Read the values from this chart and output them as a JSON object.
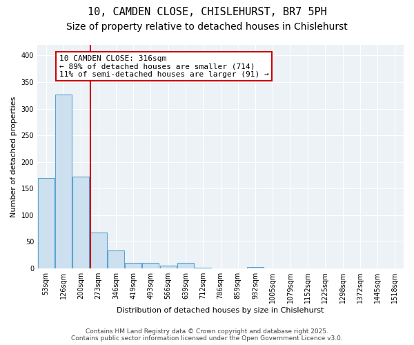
{
  "title_line1": "10, CAMDEN CLOSE, CHISLEHURST, BR7 5PH",
  "title_line2": "Size of property relative to detached houses in Chislehurst",
  "xlabel": "Distribution of detached houses by size in Chislehurst",
  "ylabel": "Number of detached properties",
  "bar_color": "#cce0f0",
  "bar_edge_color": "#5ba3d0",
  "bins": [
    "53sqm",
    "126sqm",
    "200sqm",
    "273sqm",
    "346sqm",
    "419sqm",
    "493sqm",
    "566sqm",
    "639sqm",
    "712sqm",
    "786sqm",
    "859sqm",
    "932sqm",
    "1005sqm",
    "1079sqm",
    "1152sqm",
    "1225sqm",
    "1298sqm",
    "1372sqm",
    "1445sqm",
    "1518sqm"
  ],
  "values": [
    170,
    327,
    172,
    68,
    34,
    10,
    10,
    5,
    10,
    1,
    0,
    0,
    3,
    0,
    0,
    0,
    0,
    0,
    0,
    0,
    0
  ],
  "property_line_x": 2.525,
  "property_line_color": "#cc0000",
  "annotation_text": "10 CAMDEN CLOSE: 316sqm\n← 89% of detached houses are smaller (714)\n11% of semi-detached houses are larger (91) →",
  "annotation_box_color": "#ffffff",
  "annotation_box_edge_color": "#cc0000",
  "ylim": [
    0,
    420
  ],
  "yticks": [
    0,
    50,
    100,
    150,
    200,
    250,
    300,
    350,
    400
  ],
  "background_color": "#edf2f7",
  "footer_text": "Contains HM Land Registry data © Crown copyright and database right 2025.\nContains public sector information licensed under the Open Government Licence v3.0.",
  "title_fontsize": 11,
  "subtitle_fontsize": 10,
  "axis_label_fontsize": 8,
  "tick_fontsize": 7,
  "annotation_fontsize": 8
}
